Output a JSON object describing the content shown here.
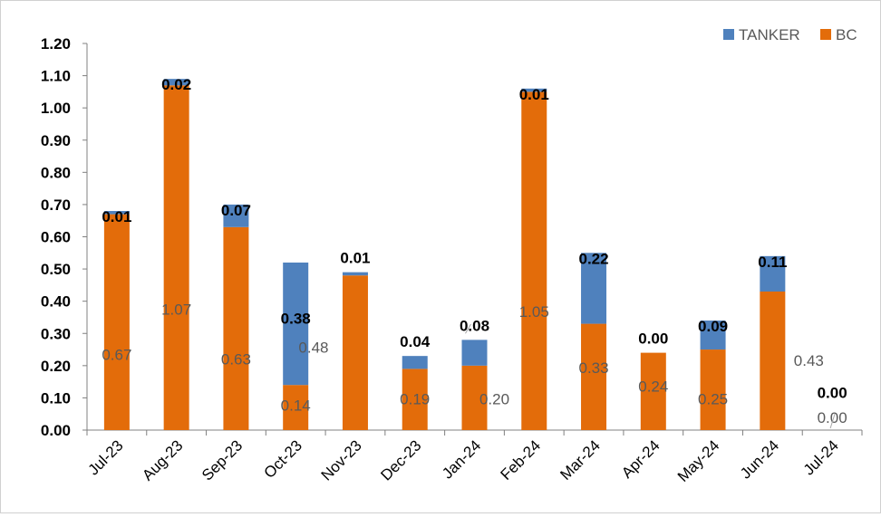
{
  "chart_data": {
    "type": "bar",
    "stacked": true,
    "categories": [
      "Jul-23",
      "Aug-23",
      "Sep-23",
      "Oct-23",
      "Nov-23",
      "Dec-23",
      "Jan-24",
      "Feb-24",
      "Mar-24",
      "Apr-24",
      "May-24",
      "Jun-24",
      "Jul-24"
    ],
    "series": [
      {
        "name": "BC",
        "color": "#E36C0A",
        "values": [
          0.67,
          1.07,
          0.63,
          0.14,
          0.48,
          0.19,
          0.2,
          1.05,
          0.33,
          0.24,
          0.25,
          0.43,
          0.0
        ],
        "labels": [
          "0.67",
          "1.07",
          "0.63",
          "0.14",
          "0.48",
          "0.19",
          "0.20",
          "1.05",
          "0.33",
          "0.24",
          "0.25",
          "0.43",
          "0.00"
        ]
      },
      {
        "name": "TANKER",
        "color": "#4F81BD",
        "values": [
          0.01,
          0.02,
          0.07,
          0.38,
          0.01,
          0.04,
          0.08,
          0.01,
          0.22,
          0.0,
          0.09,
          0.11,
          0.0
        ],
        "labels": [
          "0.01",
          "0.02",
          "0.07",
          "0.38",
          "0.01",
          "0.04",
          "0.08",
          "0.01",
          "0.22",
          "0.00",
          "0.09",
          "0.11",
          "0.00"
        ]
      }
    ],
    "legend_order": [
      "TANKER",
      "BC"
    ],
    "legend_position": "top-right",
    "ylim": [
      0,
      1.2
    ],
    "yticks": [
      "0.00",
      "0.10",
      "0.20",
      "0.30",
      "0.40",
      "0.50",
      "0.60",
      "0.70",
      "0.80",
      "0.90",
      "1.00",
      "1.10",
      "1.20"
    ],
    "grid": false,
    "title": "",
    "xlabel": "",
    "ylabel": ""
  }
}
